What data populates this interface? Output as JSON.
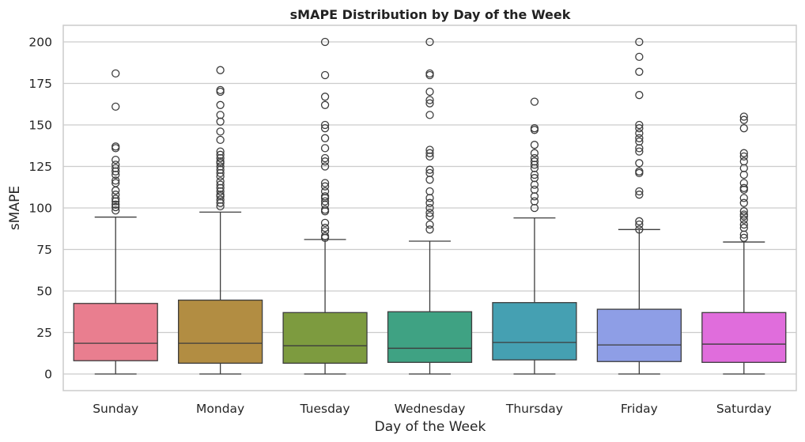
{
  "chart_data": {
    "type": "box",
    "title": "sMAPE Distribution by Day of the Week",
    "xlabel": "Day of the Week",
    "ylabel": "sMAPE",
    "ylim": [
      -10,
      210
    ],
    "yticks": [
      0,
      25,
      50,
      75,
      100,
      125,
      150,
      175,
      200
    ],
    "grid": "horizontal",
    "categories": [
      "Sunday",
      "Monday",
      "Tuesday",
      "Wednesday",
      "Thursday",
      "Friday",
      "Saturday"
    ],
    "colors": [
      "#e97e8f",
      "#b28d42",
      "#7d9b3f",
      "#3fa283",
      "#45a0b2",
      "#8e9ee6",
      "#e06ddc"
    ],
    "boxes": [
      {
        "category": "Sunday",
        "whisker_low": 0,
        "q1": 8,
        "median": 18.5,
        "q3": 42.5,
        "whisker_high": 94.5,
        "fliers": [
          98.5,
          100.5,
          102,
          104,
          105.5,
          108,
          110.5,
          115,
          116.5,
          120,
          122,
          124,
          126,
          129,
          136,
          137,
          161,
          181
        ]
      },
      {
        "category": "Monday",
        "whisker_low": 0,
        "q1": 6.5,
        "median": 18.5,
        "q3": 44.5,
        "whisker_high": 97.5,
        "fliers": [
          101,
          103,
          105,
          107,
          108,
          110,
          112,
          114,
          116,
          119,
          121,
          123,
          125,
          127,
          128,
          130,
          132,
          134,
          141,
          146,
          152,
          156,
          162,
          170,
          171,
          183
        ]
      },
      {
        "category": "Tuesday",
        "whisker_low": 0,
        "q1": 6.5,
        "median": 17,
        "q3": 37,
        "whisker_high": 81,
        "fliers": [
          82,
          83,
          86,
          88,
          91,
          98,
          99,
          102,
          104,
          106,
          107,
          110,
          113,
          115,
          125,
          128,
          130,
          136,
          142,
          148,
          150,
          162,
          167,
          180,
          200
        ]
      },
      {
        "category": "Wednesday",
        "whisker_low": 0,
        "q1": 7,
        "median": 15.5,
        "q3": 37.5,
        "whisker_high": 80,
        "fliers": [
          87,
          90,
          95,
          97,
          100,
          103,
          106,
          110,
          117,
          121,
          123,
          131,
          133,
          135,
          156,
          163,
          165,
          170,
          180,
          181,
          200
        ]
      },
      {
        "category": "Thursday",
        "whisker_low": 0,
        "q1": 8.5,
        "median": 19,
        "q3": 43,
        "whisker_high": 94,
        "fliers": [
          100,
          104,
          107,
          111,
          114,
          118,
          120,
          124,
          126,
          128,
          130,
          133,
          138,
          147,
          148,
          164
        ]
      },
      {
        "category": "Friday",
        "whisker_low": 0,
        "q1": 7.5,
        "median": 17.5,
        "q3": 39,
        "whisker_high": 87,
        "fliers": [
          87,
          90,
          92,
          108,
          110,
          121,
          122,
          127,
          134,
          136,
          140,
          142,
          145,
          148,
          150,
          168,
          182,
          191,
          200
        ]
      },
      {
        "category": "Saturday",
        "whisker_low": 0,
        "q1": 7,
        "median": 18,
        "q3": 37,
        "whisker_high": 79.5,
        "fliers": [
          82,
          84,
          88,
          90,
          93,
          95,
          96,
          98,
          103,
          106,
          111,
          112,
          115,
          120,
          124,
          128,
          131,
          133,
          148,
          153,
          155
        ]
      }
    ]
  }
}
